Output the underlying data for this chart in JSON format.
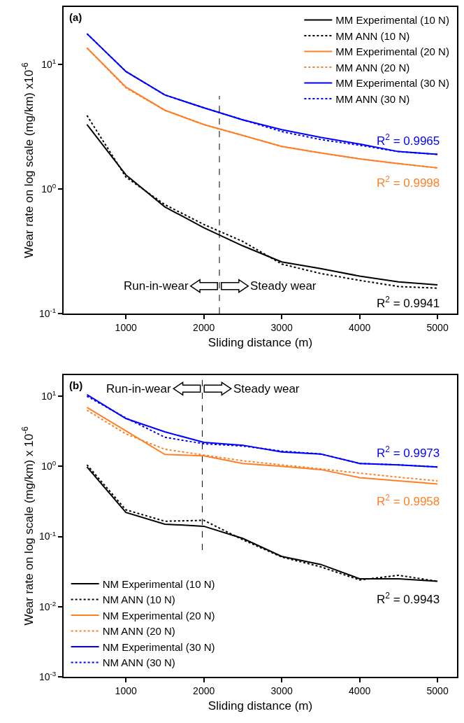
{
  "chart_data": [
    {
      "type": "line",
      "title": "(a)",
      "xlabel": "Sliding distance (m)",
      "ylabel": "Wear rate on log scale (mg/km) x10$^{-6}$",
      "x": [
        500,
        1000,
        1500,
        2000,
        2500,
        3000,
        3500,
        4000,
        4500,
        5000
      ],
      "series": [
        {
          "name": "MM Experimental (10 N)",
          "color": "#000000",
          "line_style": "solid",
          "values": [
            3.3,
            1.3,
            0.72,
            0.49,
            0.35,
            0.26,
            0.23,
            0.2,
            0.18,
            0.17
          ]
        },
        {
          "name": "MM ANN (10 N)",
          "color": "#000000",
          "line_style": "dotted",
          "values": [
            3.9,
            1.25,
            0.75,
            0.52,
            0.38,
            0.25,
            0.21,
            0.185,
            0.165,
            0.16
          ]
        },
        {
          "name": "MM Experimental (20 N)",
          "color": "#ff7f27",
          "line_style": "solid",
          "values": [
            13.6,
            6.6,
            4.3,
            3.3,
            2.7,
            2.2,
            1.95,
            1.75,
            1.6,
            1.48
          ]
        },
        {
          "name": "MM ANN (20 N)",
          "color": "#ff7f27",
          "line_style": "dotted",
          "values": [
            13.6,
            6.5,
            4.3,
            3.3,
            2.7,
            2.2,
            1.95,
            1.75,
            1.6,
            1.48
          ]
        },
        {
          "name": "MM Experimental (30 N)",
          "color": "#0000ff",
          "line_style": "solid",
          "values": [
            17.7,
            8.8,
            5.7,
            4.5,
            3.6,
            3.0,
            2.6,
            2.3,
            2.0,
            1.9
          ]
        },
        {
          "name": "MM ANN (30 N)",
          "color": "#0000ff",
          "line_style": "dotted",
          "values": [
            17.7,
            8.8,
            5.7,
            4.5,
            3.6,
            2.9,
            2.5,
            2.25,
            2.0,
            1.9
          ]
        }
      ],
      "log": "y",
      "xlim": [
        200,
        5250
      ],
      "xticks": [
        1000,
        2000,
        3000,
        4000,
        5000
      ],
      "ylim": [
        0.1,
        29
      ],
      "yticks": [
        {
          "value": 0.1,
          "label": "10$^{-1}$"
        },
        {
          "value": 1,
          "label": "10$^{0}$"
        },
        {
          "value": 10,
          "label": "10$^{1}$"
        }
      ],
      "grid": false,
      "legend": "top right",
      "ref_lines": [
        {
          "axis": "x",
          "value": 2200,
          "line_style": "dashed",
          "color": "#000000"
        }
      ],
      "annotations": [
        "R$^{2}$ = 0.9965",
        "R$^{2}$ = 0.9998",
        "R$^{2}$ = 0.9941",
        "Run-in-wear",
        "Steady wear"
      ]
    },
    {
      "type": "line",
      "title": "(b)",
      "xlabel": "Sliding distance (m)",
      "ylabel": "Wear rate on log scale (mg/km) x 10$^{-6}$",
      "x": [
        500,
        1000,
        1500,
        2000,
        2500,
        3000,
        3500,
        4000,
        4500,
        5000
      ],
      "series": [
        {
          "name": "NM Experimental (10 N)",
          "color": "#000000",
          "line_style": "solid",
          "values": [
            0.98,
            0.22,
            0.15,
            0.14,
            0.094,
            0.052,
            0.04,
            0.025,
            0.025,
            0.023
          ]
        },
        {
          "name": "NM ANN (10 N)",
          "color": "#000000",
          "line_style": "dotted",
          "values": [
            1.05,
            0.24,
            0.165,
            0.17,
            0.09,
            0.051,
            0.037,
            0.024,
            0.028,
            0.023
          ]
        },
        {
          "name": "NM Experimental (20 N)",
          "color": "#ff7f27",
          "line_style": "solid",
          "values": [
            6.9,
            3.2,
            1.48,
            1.41,
            1.1,
            1.0,
            0.9,
            0.69,
            0.62,
            0.56
          ]
        },
        {
          "name": "NM ANN (20 N)",
          "color": "#ff7f27",
          "line_style": "dotted",
          "values": [
            6.3,
            2.9,
            1.75,
            1.45,
            1.2,
            1.05,
            0.92,
            0.8,
            0.7,
            0.62
          ]
        },
        {
          "name": "NM Experimental (30 N)",
          "color": "#0000ff",
          "line_style": "solid",
          "values": [
            10.5,
            4.8,
            3.1,
            2.2,
            2.0,
            1.6,
            1.5,
            1.1,
            1.05,
            0.98
          ]
        },
        {
          "name": "NM ANN (30 N)",
          "color": "#0000ff",
          "line_style": "dotted",
          "values": [
            10.0,
            4.9,
            2.6,
            2.1,
            1.95,
            1.65,
            1.5,
            1.1,
            1.05,
            0.98
          ]
        }
      ],
      "log": "y",
      "xlim": [
        200,
        5250
      ],
      "xticks": [
        1000,
        2000,
        3000,
        4000,
        5000
      ],
      "ylim": [
        0.001,
        20
      ],
      "yticks": [
        {
          "value": 0.001,
          "label": "10$^{-3}$"
        },
        {
          "value": 0.01,
          "label": "10$^{-2}$"
        },
        {
          "value": 0.1,
          "label": "10$^{-1}$"
        },
        {
          "value": 1,
          "label": "10$^{0}$"
        },
        {
          "value": 10,
          "label": "10$^{1}$"
        }
      ],
      "grid": false,
      "legend": "bottom left",
      "ref_lines": [
        {
          "axis": "x",
          "value": 1980,
          "line_style": "dashed",
          "color": "#000000"
        }
      ],
      "annotations": [
        "R$^{2}$ = 0.9973",
        "R$^{2}$ = 0.9958",
        "R$^{2}$ = 0.9943",
        "Run-in-wear",
        "Steady wear"
      ]
    }
  ]
}
